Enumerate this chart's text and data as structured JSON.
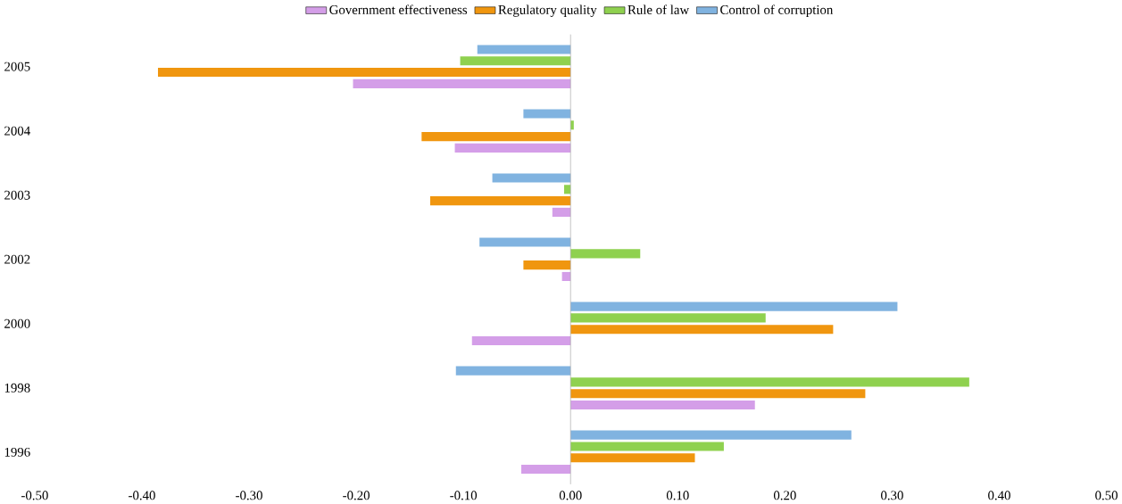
{
  "chart_data": {
    "type": "bar",
    "orientation": "horizontal",
    "categories": [
      "2005",
      "2004",
      "2003",
      "2002",
      "2000",
      "1998",
      "1996"
    ],
    "series": [
      {
        "name": "Government effectiveness",
        "color": "#d49ee8",
        "values": [
          -0.203,
          -0.108,
          -0.017,
          -0.008,
          -0.092,
          0.172,
          -0.046
        ]
      },
      {
        "name": "Regulatory quality",
        "color": "#f0960f",
        "values": [
          -0.385,
          -0.139,
          -0.131,
          -0.044,
          0.245,
          0.275,
          0.116
        ]
      },
      {
        "name": "Rule of law",
        "color": "#8fd14f",
        "values": [
          -0.103,
          0.003,
          -0.006,
          0.065,
          0.182,
          0.372,
          0.143
        ]
      },
      {
        "name": "Control of corruption",
        "color": "#80b3e0",
        "values": [
          -0.087,
          -0.044,
          -0.073,
          -0.085,
          0.305,
          -0.107,
          0.262
        ]
      }
    ],
    "xlim": [
      -0.5,
      0.5
    ],
    "xticks": [
      {
        "value": -0.5,
        "label": "-0.50"
      },
      {
        "value": -0.4,
        "label": "-0.40"
      },
      {
        "value": -0.3,
        "label": "-0.30"
      },
      {
        "value": -0.2,
        "label": "-0.20"
      },
      {
        "value": -0.1,
        "label": "-0.10"
      },
      {
        "value": 0,
        "label": "0.00"
      },
      {
        "value": 0.1,
        "label": "0.10"
      },
      {
        "value": 0.2,
        "label": "0.20"
      },
      {
        "value": 0.3,
        "label": "0.30"
      },
      {
        "value": 0.4,
        "label": "0.40"
      },
      {
        "value": 0.5,
        "label": "0.50"
      }
    ],
    "legend": "top"
  }
}
